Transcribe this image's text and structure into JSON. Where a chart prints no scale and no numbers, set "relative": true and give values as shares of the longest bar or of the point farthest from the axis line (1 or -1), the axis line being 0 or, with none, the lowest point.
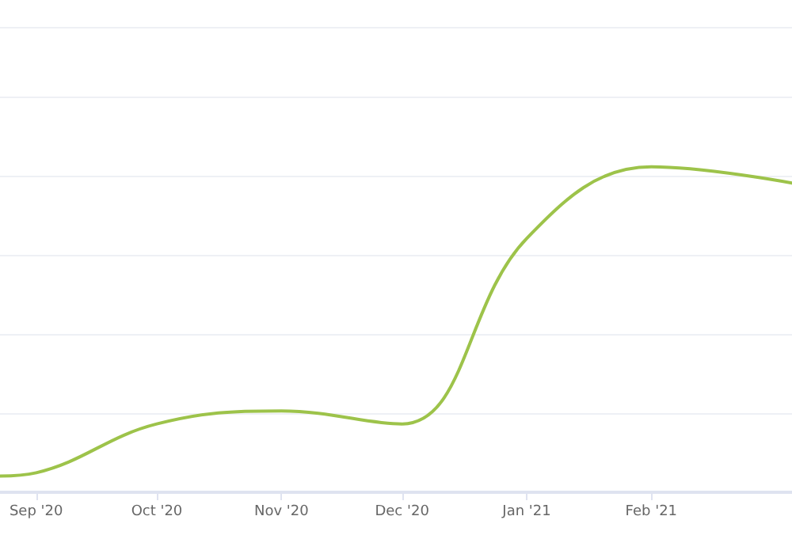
{
  "chart_data": {
    "type": "line",
    "relative": true,
    "grid": "y",
    "marker": "none",
    "line_style": "solid",
    "xlim": [
      "2020-08-23",
      "2021-03-08"
    ],
    "xticks": [
      {
        "value": "2020-09-01",
        "label": "Sep '20"
      },
      {
        "value": "2020-10-01",
        "label": "Oct '20"
      },
      {
        "value": "2020-11-01",
        "label": "Nov '20"
      },
      {
        "value": "2020-12-01",
        "label": "Dec '20"
      },
      {
        "value": "2021-01-01",
        "label": "Jan '21"
      },
      {
        "value": "2021-02-01",
        "label": "Feb '21"
      }
    ],
    "x": [
      "2020-08-23",
      "2020-09-01",
      "2020-10-01",
      "2020-11-01",
      "2020-12-01",
      "2021-01-01",
      "2021-02-01",
      "2021-03-08"
    ],
    "series": [
      {
        "color": "#9dc34a",
        "values": [
          0.05,
          0.06,
          0.21,
          0.25,
          0.21,
          0.78,
          1.0,
          0.95
        ]
      }
    ]
  }
}
